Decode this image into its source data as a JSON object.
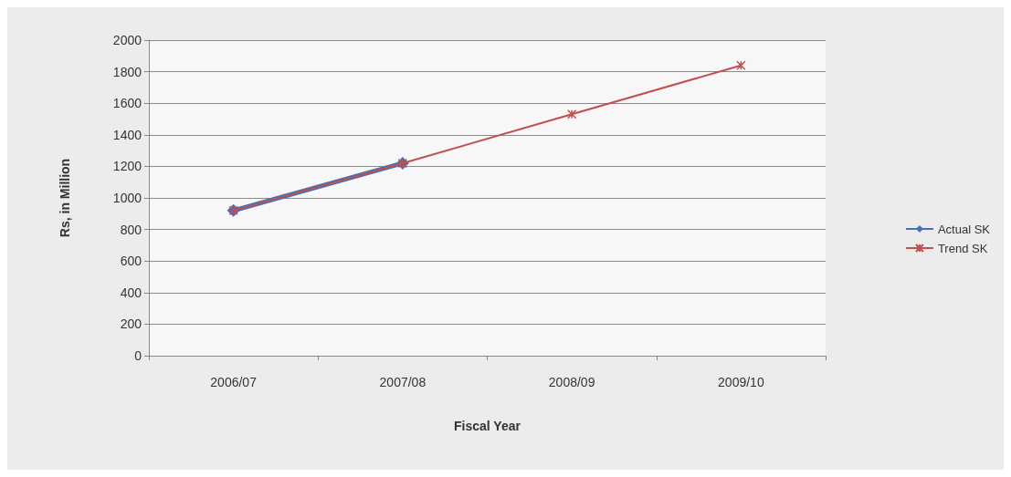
{
  "chart_data": {
    "type": "line",
    "xlabel": "Fiscal Year",
    "ylabel": "Rs, in Million",
    "categories": [
      "2006/07",
      "2007/08",
      "2008/09",
      "2009/10"
    ],
    "series": [
      {
        "name": "Actual SK",
        "color": "#4a6fb5",
        "marker": "diamond",
        "values": [
          920,
          1220,
          null,
          null
        ]
      },
      {
        "name": "Trend SK",
        "color": "#c0504d",
        "marker": "cross",
        "values": [
          920,
          1220,
          1530,
          1840
        ]
      }
    ],
    "ylim": [
      0,
      2000
    ],
    "yticks": [
      0,
      200,
      400,
      600,
      800,
      1000,
      1200,
      1400,
      1600,
      1800,
      2000
    ],
    "grid": "y",
    "legend": "right",
    "line_style": "solid"
  }
}
